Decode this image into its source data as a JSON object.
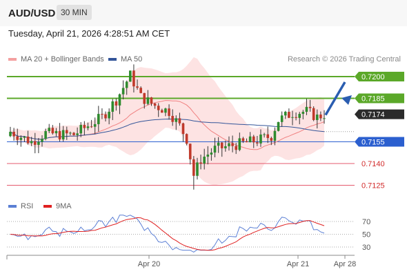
{
  "header": {
    "symbol": "AUD/USD",
    "timeframe": "30 MIN"
  },
  "datetime": "Tuesday, April 21, 2026 4:28:51 AM CET",
  "legend": {
    "ma20_label": "MA 20 + Bollinger Bands",
    "ma50_label": "MA 50",
    "ma20_color": "#f08080",
    "ma50_color": "#335599",
    "credit": "Research © 2026 Trading Central"
  },
  "rsi_legend": {
    "rsi_label": "RSI",
    "ma_label": "9MA",
    "rsi_color": "#5b7fd4",
    "ma_color": "#e02020"
  },
  "chart_data": [
    {
      "type": "candlestick",
      "x_labels": [
        "Apr 20",
        "Apr 21",
        "Apr 28"
      ],
      "ylim": [
        0.711,
        0.722
      ],
      "levels": [
        {
          "value": 0.72,
          "label": "0.7200",
          "kind": "resistance"
        },
        {
          "value": 0.7185,
          "label": "0.7185",
          "kind": "resistance"
        },
        {
          "value": 0.7174,
          "label": "0.7174",
          "kind": "last-price"
        },
        {
          "value": 0.7155,
          "label": "0.7155",
          "kind": "pivot"
        },
        {
          "value": 0.714,
          "label": "0.7140",
          "kind": "support"
        },
        {
          "value": 0.7125,
          "label": "0.7125",
          "kind": "support"
        }
      ],
      "forecast": {
        "from": 0.7174,
        "to": 0.72,
        "direction": "up"
      },
      "colors": {
        "up": "#2e8b2e",
        "down": "#c0392b",
        "resistance": "#5ba829",
        "support": "#e55a6e",
        "pivot": "#2b5fcf",
        "band": "#fde3e3"
      }
    },
    {
      "type": "line",
      "name": "RSI panel",
      "yticks": [
        70,
        50,
        30
      ],
      "ylim": [
        20,
        85
      ]
    }
  ]
}
